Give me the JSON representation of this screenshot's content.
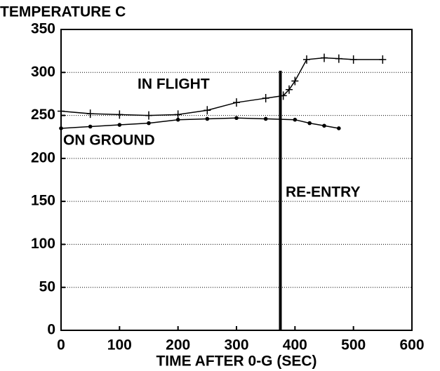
{
  "chart_data": {
    "type": "line",
    "title": "TEMPERATURE C",
    "xlabel": "TIME AFTER 0-G (SEC)",
    "annotations": [
      "IN FLIGHT",
      "ON GROUND",
      "RE-ENTRY"
    ],
    "vline": {
      "x": 375,
      "y_top": 302
    },
    "series": [
      {
        "name": "IN FLIGHT",
        "color": "#000000",
        "marker": "plus",
        "x": [
          0,
          50,
          100,
          150,
          200,
          250,
          300,
          350,
          380,
          390,
          400,
          420,
          450,
          475,
          500,
          550
        ],
        "values": [
          255,
          252,
          251,
          250,
          251,
          256,
          265,
          270,
          273,
          280,
          290,
          315,
          317,
          316,
          315,
          315
        ]
      },
      {
        "name": "ON GROUND",
        "color": "#000000",
        "marker": "dot",
        "x": [
          0,
          50,
          100,
          150,
          200,
          250,
          300,
          350,
          400,
          425,
          450,
          475
        ],
        "values": [
          235,
          237,
          239,
          241,
          245,
          246,
          247,
          246,
          245,
          241,
          238,
          235
        ]
      }
    ],
    "xlim": [
      0,
      600
    ],
    "xticks": [
      0,
      100,
      200,
      300,
      400,
      500,
      600
    ],
    "ylim": [
      0,
      350
    ],
    "yticks": [
      0,
      50,
      100,
      150,
      200,
      250,
      300,
      350
    ],
    "grid": true
  }
}
